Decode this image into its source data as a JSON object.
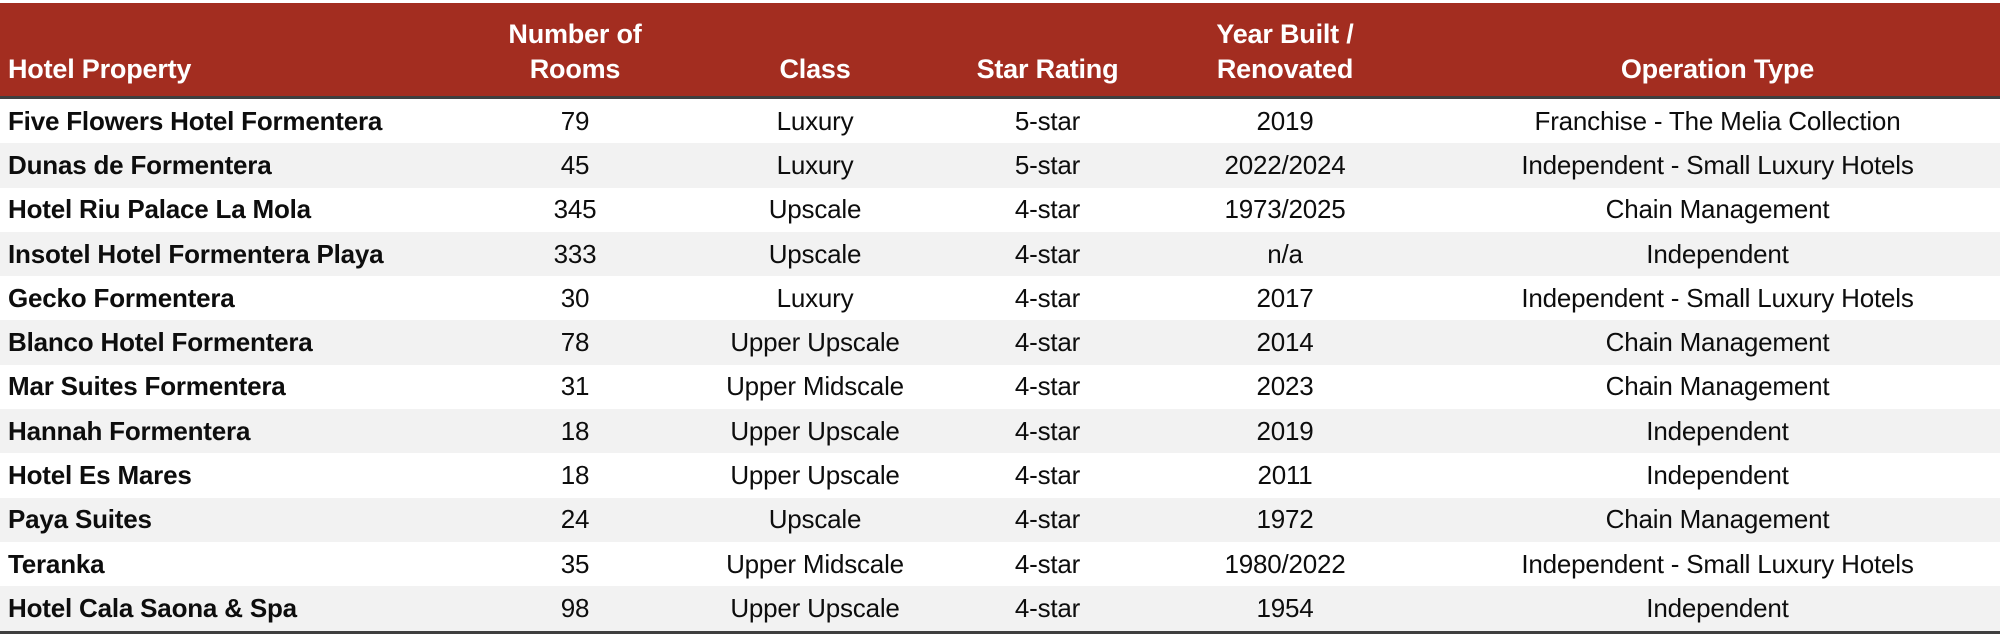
{
  "table": {
    "colors": {
      "header_bg": "#a32d20",
      "header_fg": "#ffffff",
      "stripe_bg": "#f2f2f2",
      "rule_color": "#3f3f3f"
    },
    "columns": [
      {
        "key": "property",
        "label": "Hotel Property"
      },
      {
        "key": "rooms",
        "label": "Number of\nRooms"
      },
      {
        "key": "class",
        "label": "Class"
      },
      {
        "key": "star_rating",
        "label": "Star Rating"
      },
      {
        "key": "year_built_renovated",
        "label": "Year Built /\nRenovated"
      },
      {
        "key": "operation_type",
        "label": "Operation Type"
      }
    ],
    "rows": [
      {
        "property": "Five Flowers Hotel Formentera",
        "rooms": "79",
        "class": "Luxury",
        "star_rating": "5-star",
        "year_built_renovated": "2019",
        "operation_type": "Franchise - The Melia Collection"
      },
      {
        "property": "Dunas de Formentera",
        "rooms": "45",
        "class": "Luxury",
        "star_rating": "5-star",
        "year_built_renovated": "2022/2024",
        "operation_type": "Independent - Small Luxury Hotels"
      },
      {
        "property": "Hotel Riu Palace La Mola",
        "rooms": "345",
        "class": "Upscale",
        "star_rating": "4-star",
        "year_built_renovated": "1973/2025",
        "operation_type": "Chain Management"
      },
      {
        "property": "Insotel Hotel Formentera Playa",
        "rooms": "333",
        "class": "Upscale",
        "star_rating": "4-star",
        "year_built_renovated": "n/a",
        "operation_type": "Independent"
      },
      {
        "property": "Gecko Formentera",
        "rooms": "30",
        "class": "Luxury",
        "star_rating": "4-star",
        "year_built_renovated": "2017",
        "operation_type": "Independent - Small Luxury Hotels"
      },
      {
        "property": "Blanco Hotel Formentera",
        "rooms": "78",
        "class": "Upper Upscale",
        "star_rating": "4-star",
        "year_built_renovated": "2014",
        "operation_type": "Chain Management"
      },
      {
        "property": "Mar Suites Formentera",
        "rooms": "31",
        "class": "Upper Midscale",
        "star_rating": "4-star",
        "year_built_renovated": "2023",
        "operation_type": "Chain Management"
      },
      {
        "property": "Hannah Formentera",
        "rooms": "18",
        "class": "Upper Upscale",
        "star_rating": "4-star",
        "year_built_renovated": "2019",
        "operation_type": "Independent"
      },
      {
        "property": "Hotel Es Mares",
        "rooms": "18",
        "class": "Upper Upscale",
        "star_rating": "4-star",
        "year_built_renovated": "2011",
        "operation_type": "Independent"
      },
      {
        "property": "Paya Suites",
        "rooms": "24",
        "class": "Upscale",
        "star_rating": "4-star",
        "year_built_renovated": "1972",
        "operation_type": "Chain Management"
      },
      {
        "property": "Teranka",
        "rooms": "35",
        "class": "Upper Midscale",
        "star_rating": "4-star",
        "year_built_renovated": "1980/2022",
        "operation_type": "Independent - Small Luxury Hotels"
      },
      {
        "property": "Hotel Cala Saona & Spa",
        "rooms": "98",
        "class": "Upper Upscale",
        "star_rating": "4-star",
        "year_built_renovated": "1954",
        "operation_type": "Independent"
      }
    ]
  }
}
